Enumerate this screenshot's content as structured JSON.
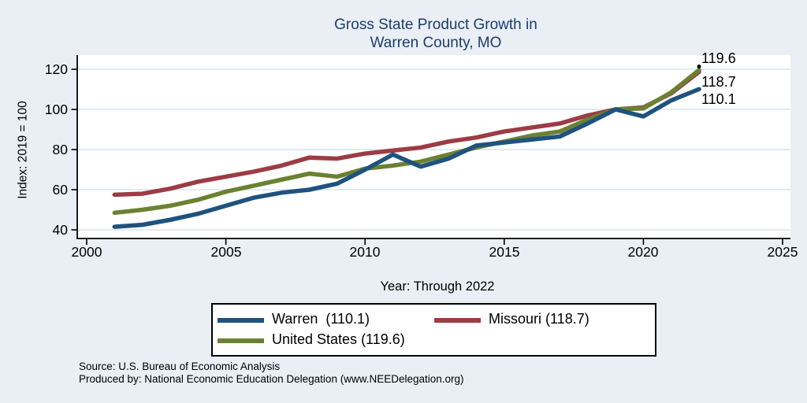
{
  "title": {
    "line1": "Gross State Product Growth in",
    "line2": "Warren County, MO"
  },
  "axes": {
    "y_label": "Index: 2019 = 100",
    "x_label": "Year: Through 2022",
    "y_ticks": [
      "120",
      "100",
      "80",
      "60",
      "40"
    ],
    "x_ticks": [
      "2000",
      "2005",
      "2010",
      "2015",
      "2020",
      "2025"
    ]
  },
  "end_labels": [
    "119.6",
    "118.7",
    "110.1"
  ],
  "legend": {
    "items": [
      {
        "label": "Warren  (110.1)",
        "color": "#1f527e"
      },
      {
        "label": "Missouri (118.7)",
        "color": "#9c3c44"
      },
      {
        "label": "United States (119.6)",
        "color": "#6b8132"
      }
    ]
  },
  "footer": {
    "line1": "Source: U.S. Bureau of Economic Analysis",
    "line2": "Produced by: National Economic Education Delegation (www.NEEDelegation.org)"
  },
  "palette": {
    "background": "#e9eff5",
    "plot_background": "#ffffff",
    "gridline": "#dde9f2",
    "title_text": "#1d3c6e",
    "warren": "#1f527e",
    "missouri": "#9c3c44",
    "united_states": "#6b8132"
  },
  "chart_data": {
    "type": "line",
    "title": "Gross State Product Growth in Warren County, MO",
    "xlabel": "Year: Through 2022",
    "ylabel": "Index: 2019 = 100",
    "xlim": [
      2000,
      2025
    ],
    "ylim": [
      40,
      120
    ],
    "grid": "horizontal",
    "legend_position": "below",
    "x": [
      2001,
      2002,
      2003,
      2004,
      2005,
      2006,
      2007,
      2008,
      2009,
      2010,
      2011,
      2012,
      2013,
      2014,
      2015,
      2016,
      2017,
      2018,
      2019,
      2020,
      2021,
      2022
    ],
    "series": [
      {
        "name": "Warren",
        "color": "#1f527e",
        "values": [
          41.5,
          42.5,
          45,
          48,
          52,
          56,
          58.5,
          60,
          63,
          70,
          77.5,
          71.5,
          75.5,
          82,
          83.5,
          85,
          86.5,
          93,
          100,
          96.5,
          104.5,
          110.1
        ]
      },
      {
        "name": "Missouri",
        "color": "#9c3c44",
        "values": [
          57.5,
          58,
          60.5,
          64,
          66.5,
          69,
          72,
          76,
          75.5,
          78,
          79.5,
          81,
          84,
          86,
          89,
          91,
          93,
          97,
          100,
          101,
          108,
          118.7
        ]
      },
      {
        "name": "United States",
        "color": "#6b8132",
        "values": [
          48.5,
          50,
          52,
          55,
          59,
          62,
          65,
          68,
          66.5,
          70.5,
          72,
          74,
          77.5,
          81,
          84,
          87,
          89,
          95,
          100,
          100.5,
          108.5,
          119.6
        ]
      }
    ]
  }
}
